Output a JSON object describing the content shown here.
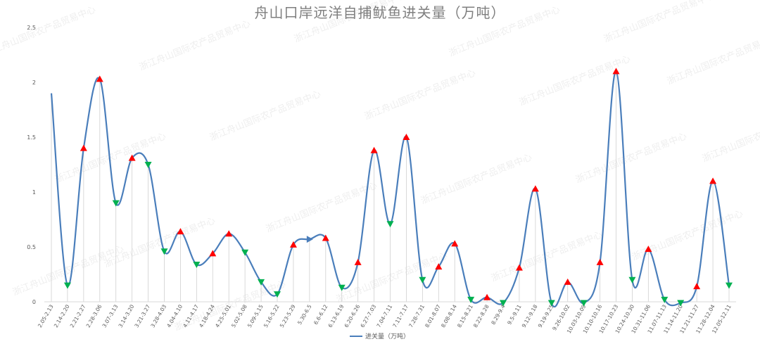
{
  "chart_data": {
    "type": "line",
    "title": "舟山口岸远洋自捕鱿鱼进关量（万吨）",
    "xlabel": "",
    "ylabel": "",
    "ylim": [
      0,
      2.5
    ],
    "yticks": [
      "0",
      "0.5",
      "1",
      "1.5",
      "2",
      "2.5"
    ],
    "grid": false,
    "drop_lines": true,
    "smooth": true,
    "legend_position": "bottom",
    "categories": [
      "2.05-2.13",
      "2.14-2.20",
      "2.21-2.27",
      "2.28-3.06",
      "3.07-3.13",
      "3.14-3.20",
      "3.21-3.27",
      "3.28-4.03",
      "4.04-4.10",
      "4.11-4.17",
      "4.18-4.24",
      "4.25-5.01",
      "5.02-5.08",
      "5.09-5.15",
      "5.16-5.22",
      "5.23-5.29",
      "5.30-6.5",
      "6.6-6.12",
      "6.13-6.19",
      "6.20-6.26",
      "6.27-7.03",
      "7.04-7.11",
      "7.11-7.17",
      "7.28-7.31",
      "8.01-8.07",
      "8.08-8.14",
      "8.15-8.21",
      "8.22-8.28",
      "8.29-9.4",
      "9.5-9.11",
      "9.12-9.18",
      "9.19-9.25",
      "9.26-10.02",
      "10.03-10.09",
      "10.10-10.16",
      "10.17-10.23",
      "10.24-10.30",
      "10.31-11.06",
      "11.07-11.13",
      "11.14-11.20",
      "11.21-11.27",
      "11.28-12.04",
      "12.05-12.11"
    ],
    "series": [
      {
        "name": "进关量（万吨）",
        "color": "#4a7ebb",
        "values": [
          1.9,
          0.15,
          1.4,
          2.03,
          0.9,
          1.31,
          1.25,
          0.46,
          0.64,
          0.34,
          0.44,
          0.62,
          0.45,
          0.18,
          0.07,
          0.52,
          0.57,
          0.58,
          0.13,
          0.36,
          1.38,
          0.71,
          1.5,
          0.2,
          0.32,
          0.53,
          0.02,
          0.04,
          -0.01,
          0.31,
          1.03,
          -0.01,
          0.18,
          -0.01,
          0.36,
          2.1,
          0.2,
          0.48,
          0.02,
          -0.01,
          0.14,
          1.1,
          0.15
        ],
        "markers": [
          "none",
          "down",
          "up",
          "up",
          "down",
          "up",
          "down",
          "down",
          "up",
          "down",
          "up",
          "up",
          "down",
          "down",
          "down",
          "up",
          "right",
          "up",
          "down",
          "up",
          "up",
          "down",
          "up",
          "down",
          "up",
          "up",
          "down",
          "up",
          "down",
          "up",
          "up",
          "down",
          "up",
          "down",
          "up",
          "up",
          "down",
          "up",
          "down",
          "down",
          "up",
          "up",
          "down"
        ]
      }
    ],
    "marker_colors": {
      "up": "#ff0000",
      "down": "#00b050",
      "right": "#4a7ebb"
    },
    "watermark": "浙江舟山国际农产品贸易中心"
  }
}
